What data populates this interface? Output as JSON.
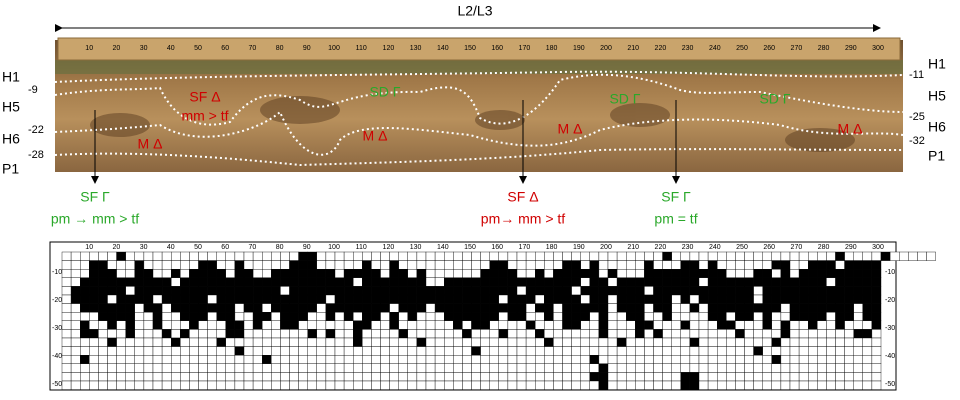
{
  "header": {
    "title": "L2/L3"
  },
  "left_labels": {
    "horizons": [
      "H1",
      "H5",
      "H6",
      "P1"
    ],
    "depths": [
      "-9",
      "-22",
      "-28"
    ]
  },
  "right_labels": {
    "horizons": [
      "H1",
      "H5",
      "H6",
      "P1"
    ],
    "depths": [
      "-11",
      "-25",
      "-32"
    ]
  },
  "ruler_labels": [
    10,
    20,
    30,
    40,
    50,
    60,
    70,
    80,
    90,
    100,
    110,
    120,
    130,
    140,
    150,
    160,
    170,
    180,
    190,
    200,
    210,
    220,
    230,
    240,
    250,
    260,
    270,
    280,
    290,
    300
  ],
  "photo_annotations": [
    {
      "text": "SF Δ",
      "color": "red"
    },
    {
      "text": "mm > tf",
      "color": "red"
    },
    {
      "text": "SD Γ",
      "color": "green"
    },
    {
      "text": "M Δ",
      "color": "red"
    },
    {
      "text": "M Δ",
      "color": "red"
    },
    {
      "text": "M Δ",
      "color": "red"
    },
    {
      "text": "SD Γ",
      "color": "green"
    },
    {
      "text": "SD Γ",
      "color": "green"
    },
    {
      "text": "M Δ",
      "color": "red"
    }
  ],
  "callouts": [
    {
      "title": "SF Γ",
      "note": "pm → mm > tf",
      "color": "green"
    },
    {
      "title": "SF Δ",
      "note": "pm→ mm > tf",
      "color": "red"
    },
    {
      "title": "SF Γ",
      "note": "pm = tf",
      "color": "green"
    }
  ],
  "profile_map": {
    "x_labels": [
      10,
      20,
      30,
      40,
      50,
      60,
      70,
      80,
      90,
      100,
      110,
      120,
      130,
      140,
      150,
      160,
      170,
      180,
      190,
      200,
      210,
      220,
      230,
      240,
      250,
      260,
      270,
      280,
      290,
      300
    ],
    "y_labels": [
      -10,
      -20,
      -30,
      -40,
      -50
    ],
    "cells": [
      "000000100000000000000000001100000000000000000000000000000000000000100000000000000000010000100000",
      "000110001000000110010000011100000100100000000001100000011010000010001101000000110011101111",
      "000111001100101111011001111111011110110100000011110010111110100011111111100011010111111111",
      "001111111111011111111111111111110111111100111111111111111011011111111101111111111111011111",
      "011111101111111111111111011111111111111111111111110111110111111101111111111101111111111111",
      "011110111101111101111111111110111111111111111111011101111011011111101011111101111111111111",
      "001111110110111111101101111101111111011101111111111011011111011101100101111111101111111011",
      "000011110010011101100110111001010110101000111111011001011101001100100001101101001111011011",
      "001001010010001000110100110000001100100000010110000100011001000110001000110001010010010001",
      "001100010001010000110000000101001000010000001000100010000001000101000000001000010000000110",
      "000001000000100001000000000000001000000100000000000001000000010000000100000000100000000000",
      "000000000000000000010000000000000000000000000100000000000000000000000000000010000000000000",
      "001000000000000000000010000000000000000000000000000000000010000000000000000000100000000000",
      "000000000000000000000000000000000000000000000000000000000001000000000000000000000000000000",
      "000000000000000000000000000000000000000000000000000000000011000000001100000000000000000000",
      "000000000000000000000000000000000000000000000000000000000001000000001100000000000000000000"
    ]
  }
}
